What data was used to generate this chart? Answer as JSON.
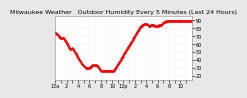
{
  "title": "Milwaukee Weather   Outdoor Humidity Every 5 Minutes (Last 24 Hours)",
  "title_fontsize": 4.5,
  "bg_color": "#e8e8e8",
  "plot_bg_color": "#ffffff",
  "line_color": "#ff0000",
  "grid_color": "#cccccc",
  "yticks": [
    20,
    30,
    40,
    50,
    60,
    70,
    80,
    90
  ],
  "ylim": [
    15,
    95
  ],
  "y_data": [
    75,
    74,
    73,
    72,
    72,
    71,
    71,
    70,
    70,
    69,
    68,
    68,
    67,
    67,
    67,
    67,
    67,
    68,
    67,
    66,
    65,
    64,
    63,
    62,
    61,
    60,
    59,
    58,
    57,
    56,
    55,
    54,
    53,
    53,
    54,
    55,
    55,
    54,
    53,
    52,
    51,
    50,
    49,
    48,
    47,
    46,
    45,
    44,
    43,
    42,
    41,
    40,
    39,
    38,
    37,
    36,
    35,
    34,
    33,
    33,
    32,
    32,
    31,
    31,
    30,
    30,
    30,
    29,
    29,
    29,
    29,
    29,
    30,
    30,
    31,
    31,
    32,
    32,
    33,
    33,
    33,
    33,
    33,
    33,
    33,
    33,
    33,
    33,
    32,
    32,
    32,
    31,
    30,
    29,
    28,
    27,
    26,
    26,
    26,
    26,
    26,
    26,
    26,
    26,
    26,
    26,
    26,
    26,
    26,
    26,
    26,
    26,
    26,
    26,
    26,
    26,
    26,
    26,
    26,
    26,
    26,
    26,
    26,
    26,
    27,
    27,
    28,
    29,
    30,
    31,
    32,
    33,
    34,
    35,
    36,
    37,
    38,
    39,
    40,
    41,
    42,
    43,
    44,
    45,
    46,
    47,
    48,
    49,
    50,
    51,
    52,
    53,
    54,
    55,
    56,
    57,
    58,
    59,
    60,
    61,
    62,
    63,
    64,
    65,
    66,
    67,
    68,
    69,
    70,
    71,
    72,
    73,
    74,
    75,
    76,
    77,
    78,
    79,
    80,
    81,
    82,
    82,
    83,
    83,
    84,
    84,
    84,
    85,
    85,
    85,
    85,
    85,
    85,
    85,
    85,
    84,
    84,
    83,
    83,
    83,
    83,
    84,
    84,
    84,
    84,
    84,
    84,
    84,
    84,
    83,
    83,
    83,
    83,
    83,
    83,
    83,
    83,
    83,
    83,
    84,
    84,
    84,
    84,
    84,
    84,
    85,
    85,
    86,
    86,
    87,
    87,
    88,
    88,
    88,
    89,
    89,
    89,
    89,
    89,
    89,
    89,
    89,
    89,
    89,
    89,
    89,
    89,
    89,
    89,
    89,
    89,
    89,
    89,
    89,
    89,
    89,
    89,
    89,
    89,
    89,
    89,
    89,
    89,
    89,
    89,
    89,
    89,
    89,
    89,
    89,
    89,
    89,
    89,
    89,
    89,
    89,
    89,
    89,
    89,
    89,
    89,
    89,
    89,
    89,
    89,
    89,
    89,
    89,
    89
  ],
  "xtick_interval": 60,
  "xtick_labels": [
    "12a",
    "",
    "2",
    "",
    "4",
    "",
    "6",
    "",
    "8",
    "",
    "10",
    "",
    "12p",
    "",
    "2",
    "",
    "4",
    "",
    "6",
    "",
    "8",
    "",
    "10",
    ""
  ],
  "tick_fontsize": 3.5,
  "linewidth": 0.8,
  "marker_size": 0.5
}
